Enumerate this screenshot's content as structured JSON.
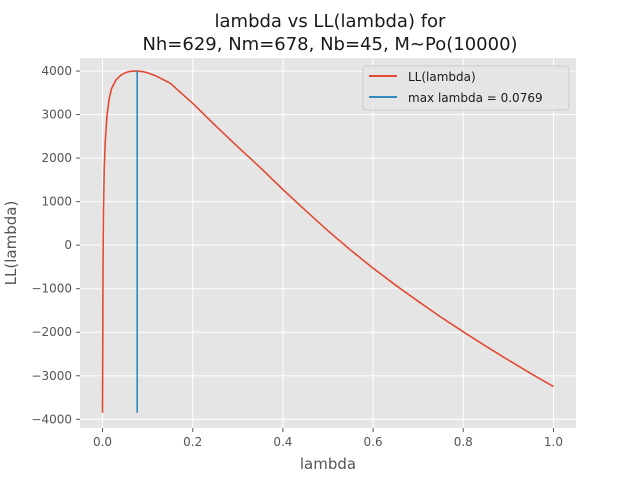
{
  "chart_data": {
    "type": "line",
    "title_lines": [
      "lambda vs LL(lambda) for",
      "Nh=629, Nm=678, Nb=45, M~Po(10000)"
    ],
    "xlabel": "lambda",
    "ylabel": "LL(lambda)",
    "xlim": [
      -0.05,
      1.05
    ],
    "ylim": [
      -4200,
      4300
    ],
    "xticks": [
      0.0,
      0.2,
      0.4,
      0.6,
      0.8,
      1.0
    ],
    "xtick_labels": [
      "0.0",
      "0.2",
      "0.4",
      "0.6",
      "0.8",
      "1.0"
    ],
    "yticks": [
      -4000,
      -3000,
      -2000,
      -1000,
      0,
      1000,
      2000,
      3000,
      4000
    ],
    "ytick_labels": [
      "−4000",
      "−3000",
      "−2000",
      "−1000",
      "0",
      "1000",
      "2000",
      "3000",
      "4000"
    ],
    "grid": true,
    "legend_position": "top-right",
    "series": [
      {
        "name": "LL(lambda)",
        "color": "#e24a33",
        "x": [
          0.0,
          0.0005,
          0.001,
          0.002,
          0.004,
          0.006,
          0.01,
          0.015,
          0.02,
          0.03,
          0.04,
          0.05,
          0.06,
          0.07,
          0.0769,
          0.09,
          0.1,
          0.12,
          0.15,
          0.2,
          0.25,
          0.3,
          0.35,
          0.4,
          0.45,
          0.5,
          0.55,
          0.6,
          0.65,
          0.7,
          0.75,
          0.8,
          0.85,
          0.9,
          0.95,
          1.0
        ],
        "y": [
          -3850,
          -2000,
          -500,
          700,
          1800,
          2400,
          3000,
          3380,
          3600,
          3800,
          3900,
          3960,
          3990,
          4000,
          4000,
          3985,
          3960,
          3880,
          3720,
          3260,
          2750,
          2260,
          1780,
          1280,
          800,
          330,
          -110,
          -530,
          -920,
          -1290,
          -1650,
          -1990,
          -2320,
          -2640,
          -2950,
          -3250
        ]
      },
      {
        "name": "max lambda = 0.0769",
        "color": "#348abd",
        "x": [
          0.0769,
          0.0769
        ],
        "y": [
          -3850,
          4000
        ]
      }
    ]
  }
}
